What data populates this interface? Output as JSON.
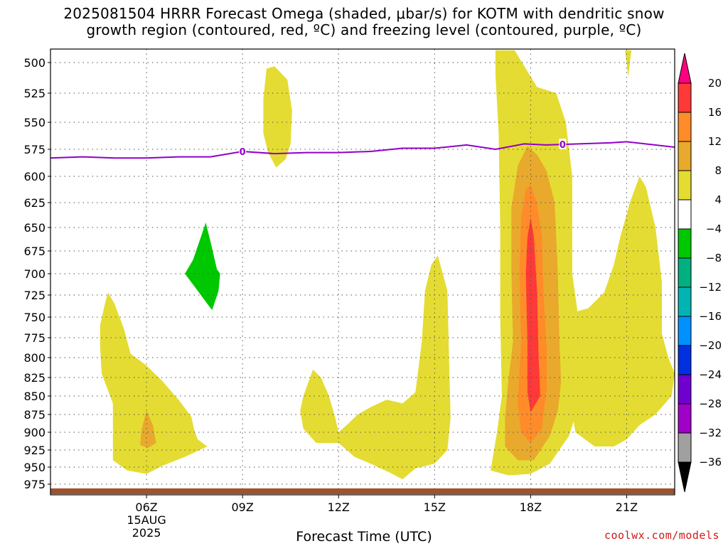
{
  "title_line1": "2025081504 HRRR Forecast Omega (shaded, μbar/s) for KOTM with dendritic snow",
  "title_line2": "growth region (contoured, red, ºC) and freezing level (contoured, purple, ºC)",
  "xlabel": "Forecast Time (UTC)",
  "watermark": "coolwx.com/models",
  "chart_data": {
    "type": "contour",
    "title": "2025081504 HRRR Forecast Omega (shaded, μbar/s) for KOTM with dendritic snow growth region (contoured, red, ºC) and freezing level (contoured, purple, ºC)",
    "xlabel": "Forecast Time (UTC)",
    "ylabel": "",
    "x_tick_labels": [
      "06Z",
      "09Z",
      "12Z",
      "15Z",
      "18Z",
      "21Z"
    ],
    "x_date_label": [
      "15AUG",
      "2025"
    ],
    "xlim_hours_utc": [
      3.0,
      22.5
    ],
    "y_ticks_mb": [
      500,
      525,
      550,
      575,
      600,
      625,
      650,
      675,
      700,
      725,
      750,
      775,
      800,
      825,
      850,
      875,
      900,
      925,
      950,
      975
    ],
    "ylim_mb": [
      980,
      490
    ],
    "colorbar": {
      "labels": [
        "20",
        "16",
        "12",
        "8",
        "4",
        "-4",
        "-8",
        "-12",
        "-16",
        "-20",
        "-24",
        "-28",
        "-32",
        "-36"
      ],
      "colors": [
        "#ff0080",
        "#ff3838",
        "#ff8c28",
        "#e9a92c",
        "#e4dc32",
        "#ffffff",
        "#00c800",
        "#00b080",
        "#00b4b4",
        "#0090ff",
        "#0030e0",
        "#7000d0",
        "#a000c8",
        "#a0a0a0",
        "#000000"
      ]
    },
    "freezing_level": {
      "label": "0",
      "color": "#9000c8",
      "points": [
        [
          3.0,
          583
        ],
        [
          4.0,
          582
        ],
        [
          5.0,
          583
        ],
        [
          6.0,
          583
        ],
        [
          7.0,
          582
        ],
        [
          8.0,
          582
        ],
        [
          9.0,
          577
        ],
        [
          10.0,
          579
        ],
        [
          11.0,
          578
        ],
        [
          12.0,
          578
        ],
        [
          13.0,
          577
        ],
        [
          14.0,
          574
        ],
        [
          15.0,
          574
        ],
        [
          16.0,
          571
        ],
        [
          16.9,
          575
        ],
        [
          17.8,
          570
        ],
        [
          18.5,
          571
        ],
        [
          19.5,
          570
        ],
        [
          20.5,
          569
        ],
        [
          21.0,
          568
        ],
        [
          22.5,
          573
        ]
      ]
    },
    "omega_regions": [
      {
        "level": "4 to 8",
        "hours": [
          17.0,
          19.5
        ],
        "pressure_mb": [
          490,
          960
        ]
      },
      {
        "level": "4 to 8",
        "hours": [
          19.0,
          22.5
        ],
        "pressure_mb": [
          590,
          920
        ]
      },
      {
        "level": "4 to 8",
        "hours": [
          4.0,
          8.0
        ],
        "pressure_mb": [
          720,
          955
        ]
      },
      {
        "level": "4 to 8",
        "hours": [
          10.8,
          15.5
        ],
        "pressure_mb": [
          680,
          965
        ]
      },
      {
        "level": "4 to 8",
        "hours": [
          9.7,
          10.5
        ],
        "pressure_mb": [
          505,
          590
        ]
      },
      {
        "level": "8 to 12",
        "hours": [
          17.3,
          18.9
        ],
        "pressure_mb": [
          575,
          950
        ]
      },
      {
        "level": "12 to 16",
        "hours": [
          17.6,
          18.7
        ],
        "pressure_mb": [
          605,
          930
        ]
      },
      {
        "level": "16 to 20",
        "hours": [
          17.85,
          18.3
        ],
        "pressure_mb": [
          640,
          870
        ]
      },
      {
        "level": "8 to 12",
        "hours": [
          5.8,
          6.3
        ],
        "pressure_mb": [
          870,
          920
        ]
      },
      {
        "level": "-4 to -8",
        "hours": [
          7.2,
          8.0
        ],
        "pressure_mb": [
          645,
          740
        ]
      }
    ],
    "surface_band_color": "#a0522d"
  }
}
